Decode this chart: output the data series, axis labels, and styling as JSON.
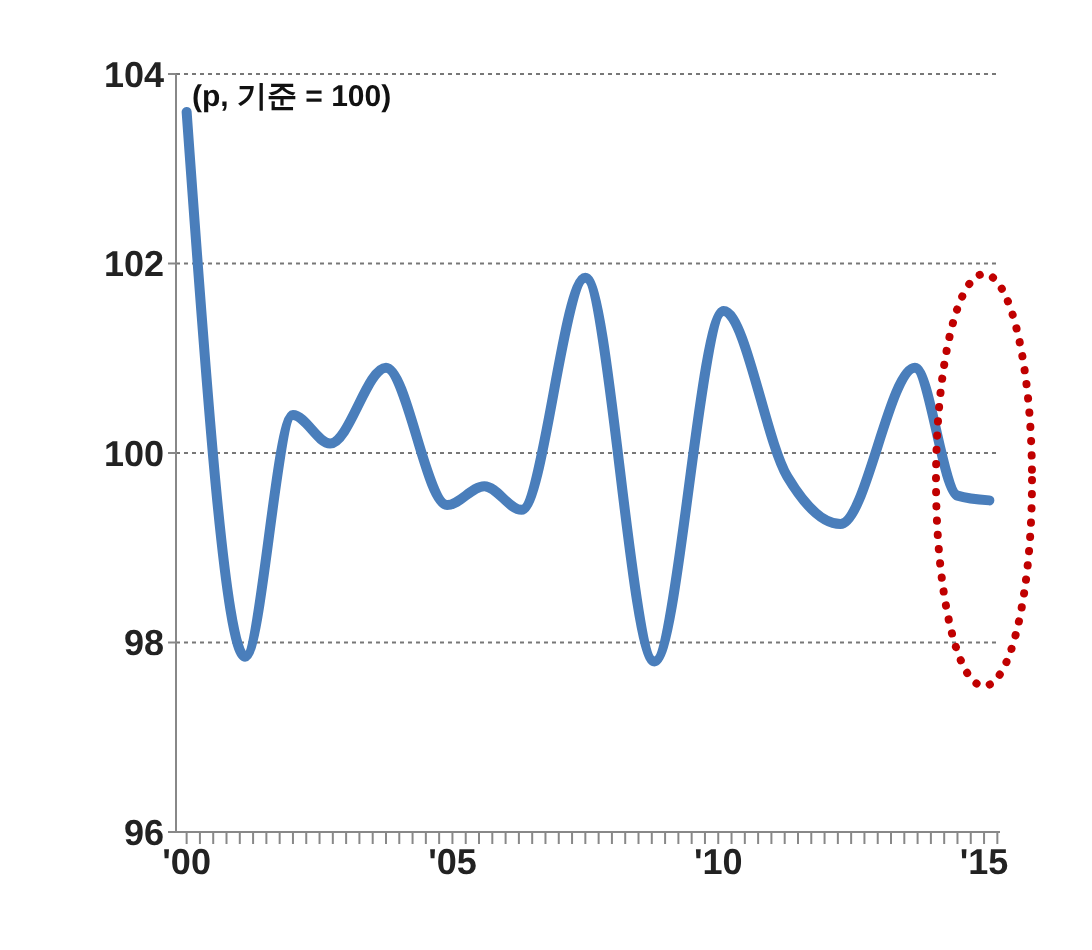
{
  "chart_data": {
    "type": "line",
    "ylabel": "(p, 기준 = 100)",
    "x": [
      2000,
      2001.1,
      2002.0,
      2002.7,
      2003.75,
      2004.9,
      2005.6,
      2006.3,
      2007.5,
      2008.8,
      2010.1,
      2011.3,
      2012.3,
      2013.7,
      2014.5,
      2015.1
    ],
    "series": [
      {
        "color": "#4a7ebb",
        "values": [
          103.6,
          97.85,
          100.4,
          100.1,
          100.9,
          99.45,
          99.65,
          99.4,
          101.85,
          97.8,
          101.5,
          99.75,
          99.25,
          100.9,
          99.55,
          99.5
        ]
      }
    ],
    "xlim": [
      1999.8,
      2015.3
    ],
    "xticks": [
      {
        "value": 2000,
        "label": "'00"
      },
      {
        "value": 2000.25,
        "label": null
      },
      {
        "value": 2000.5,
        "label": null
      },
      {
        "value": 2000.75,
        "label": null
      },
      {
        "value": 2001,
        "label": null
      },
      {
        "value": 2001.25,
        "label": null
      },
      {
        "value": 2001.5,
        "label": null
      },
      {
        "value": 2001.75,
        "label": null
      },
      {
        "value": 2002,
        "label": null
      },
      {
        "value": 2002.25,
        "label": null
      },
      {
        "value": 2002.5,
        "label": null
      },
      {
        "value": 2002.75,
        "label": null
      },
      {
        "value": 2003,
        "label": null
      },
      {
        "value": 2003.25,
        "label": null
      },
      {
        "value": 2003.5,
        "label": null
      },
      {
        "value": 2003.75,
        "label": null
      },
      {
        "value": 2004,
        "label": null
      },
      {
        "value": 2004.25,
        "label": null
      },
      {
        "value": 2004.5,
        "label": null
      },
      {
        "value": 2004.75,
        "label": null
      },
      {
        "value": 2005,
        "label": "'05"
      },
      {
        "value": 2005.25,
        "label": null
      },
      {
        "value": 2005.5,
        "label": null
      },
      {
        "value": 2005.75,
        "label": null
      },
      {
        "value": 2006,
        "label": null
      },
      {
        "value": 2006.25,
        "label": null
      },
      {
        "value": 2006.5,
        "label": null
      },
      {
        "value": 2006.75,
        "label": null
      },
      {
        "value": 2007,
        "label": null
      },
      {
        "value": 2007.25,
        "label": null
      },
      {
        "value": 2007.5,
        "label": null
      },
      {
        "value": 2007.75,
        "label": null
      },
      {
        "value": 2008,
        "label": null
      },
      {
        "value": 2008.25,
        "label": null
      },
      {
        "value": 2008.5,
        "label": null
      },
      {
        "value": 2008.75,
        "label": null
      },
      {
        "value": 2009,
        "label": null
      },
      {
        "value": 2009.25,
        "label": null
      },
      {
        "value": 2009.5,
        "label": null
      },
      {
        "value": 2009.75,
        "label": null
      },
      {
        "value": 2010,
        "label": "'10"
      },
      {
        "value": 2010.25,
        "label": null
      },
      {
        "value": 2010.5,
        "label": null
      },
      {
        "value": 2010.75,
        "label": null
      },
      {
        "value": 2011,
        "label": null
      },
      {
        "value": 2011.25,
        "label": null
      },
      {
        "value": 2011.5,
        "label": null
      },
      {
        "value": 2011.75,
        "label": null
      },
      {
        "value": 2012,
        "label": null
      },
      {
        "value": 2012.25,
        "label": null
      },
      {
        "value": 2012.5,
        "label": null
      },
      {
        "value": 2012.75,
        "label": null
      },
      {
        "value": 2013,
        "label": null
      },
      {
        "value": 2013.25,
        "label": null
      },
      {
        "value": 2013.5,
        "label": null
      },
      {
        "value": 2013.75,
        "label": null
      },
      {
        "value": 2014,
        "label": null
      },
      {
        "value": 2014.25,
        "label": null
      },
      {
        "value": 2014.5,
        "label": null
      },
      {
        "value": 2014.75,
        "label": null
      },
      {
        "value": 2015,
        "label": "'15"
      },
      {
        "value": 2015.25,
        "label": null
      }
    ],
    "ylim": [
      96,
      104
    ],
    "yticks": [
      96,
      98,
      100,
      102,
      104
    ],
    "grid": "y",
    "marker": "none",
    "line_style": "solid",
    "legend": false
  }
}
